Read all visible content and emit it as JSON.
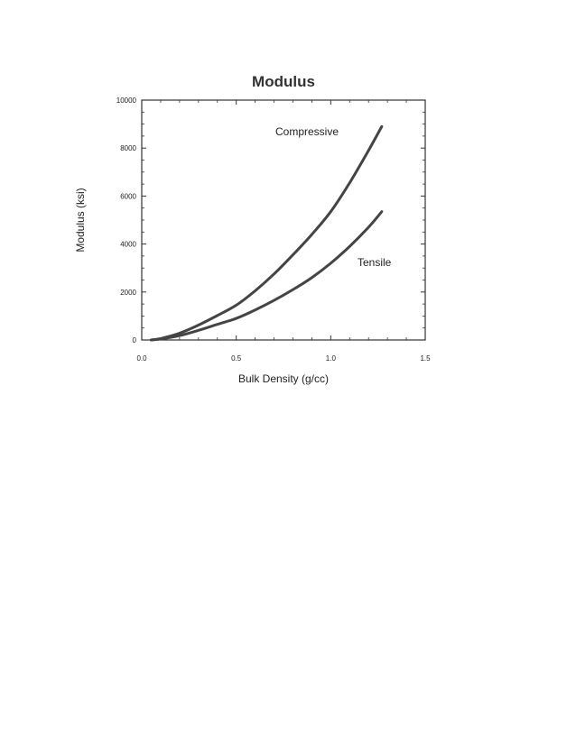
{
  "chart_data": {
    "type": "line",
    "title": "Modulus",
    "xlabel": "Bulk Density (g/cc)",
    "ylabel": "Modulus (ksi)",
    "xlim": [
      0,
      1.5
    ],
    "ylim": [
      0,
      10000
    ],
    "xticks": [
      0,
      0.5,
      1.0,
      1.5
    ],
    "xtick_labels": [
      "0.0",
      "0.5",
      "1.0",
      "1.5"
    ],
    "yticks": [
      0,
      2000,
      4000,
      6000,
      8000,
      10000
    ],
    "ytick_labels": [
      "0",
      "2000",
      "4000",
      "6000",
      "8000",
      "10000"
    ],
    "grid": false,
    "series": [
      {
        "name": "Compressive",
        "color": "#444444",
        "x": [
          0.05,
          0.1,
          0.2,
          0.3,
          0.4,
          0.5,
          0.6,
          0.7,
          0.8,
          0.9,
          1.0,
          1.1,
          1.2,
          1.27
        ],
        "y": [
          0,
          60,
          280,
          620,
          1020,
          1450,
          2050,
          2750,
          3550,
          4400,
          5350,
          6550,
          7900,
          8900
        ]
      },
      {
        "name": "Tensile",
        "color": "#444444",
        "x": [
          0.05,
          0.1,
          0.2,
          0.3,
          0.4,
          0.5,
          0.6,
          0.7,
          0.8,
          0.9,
          1.0,
          1.1,
          1.2,
          1.27
        ],
        "y": [
          0,
          40,
          180,
          400,
          650,
          900,
          1250,
          1650,
          2100,
          2600,
          3200,
          3900,
          4700,
          5350
        ]
      }
    ]
  }
}
